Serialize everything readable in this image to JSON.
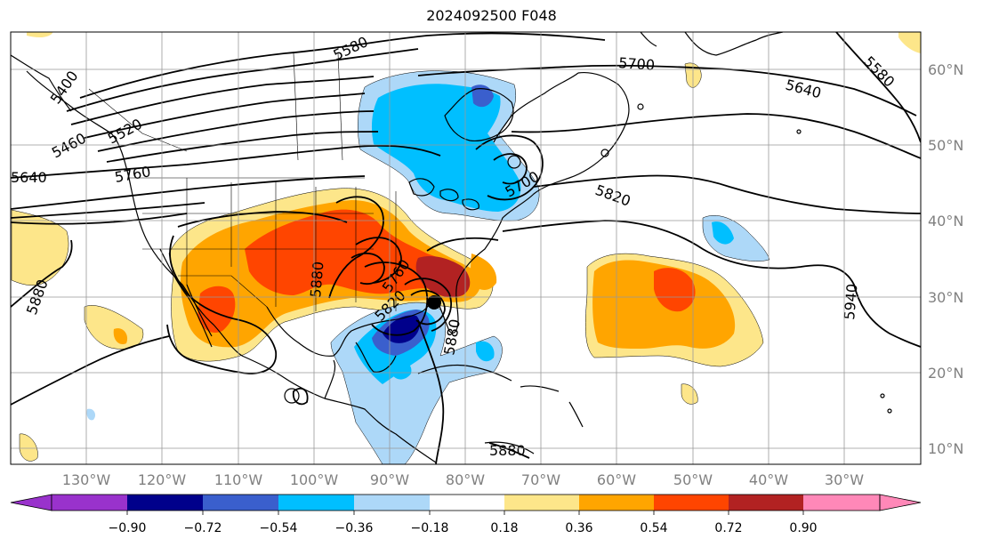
{
  "title": "2024092500 F048",
  "map": {
    "longitude_labels": [
      "130°W",
      "120°W",
      "110°W",
      "100°W",
      "90°W",
      "80°W",
      "70°W",
      "60°W",
      "50°W",
      "40°W",
      "30°W"
    ],
    "latitude_labels": [
      "60°N",
      "50°N",
      "40°N",
      "30°N",
      "20°N",
      "10°N"
    ],
    "contour_labels": [
      "5580",
      "5520",
      "5460",
      "5400",
      "5640",
      "5760",
      "5700",
      "5820",
      "5880",
      "5940",
      "5700",
      "5640",
      "5580",
      "5880",
      "5760",
      "5820",
      "5880",
      "5880"
    ],
    "colors": {
      "lt_neg_0.90": "#9932cc",
      "neg_0.90_0.72": "#00008b",
      "neg_0.72_0.54": "#3a5fcd",
      "neg_0.54_0.36": "#00bfff",
      "neg_0.36_0.18": "#add8f8",
      "neutral": "#ffffff",
      "pos_0.18_0.36": "#fde68a",
      "pos_0.36_0.54": "#ffa500",
      "pos_0.54_0.72": "#ff4500",
      "pos_0.72_0.90": "#b22222",
      "gt_0.90": "#ff88b8"
    }
  },
  "colorbar": {
    "ticks": [
      "−0.90",
      "−0.72",
      "−0.54",
      "−0.36",
      "−0.18",
      "0.18",
      "0.36",
      "0.54",
      "0.72",
      "0.90"
    ]
  }
}
